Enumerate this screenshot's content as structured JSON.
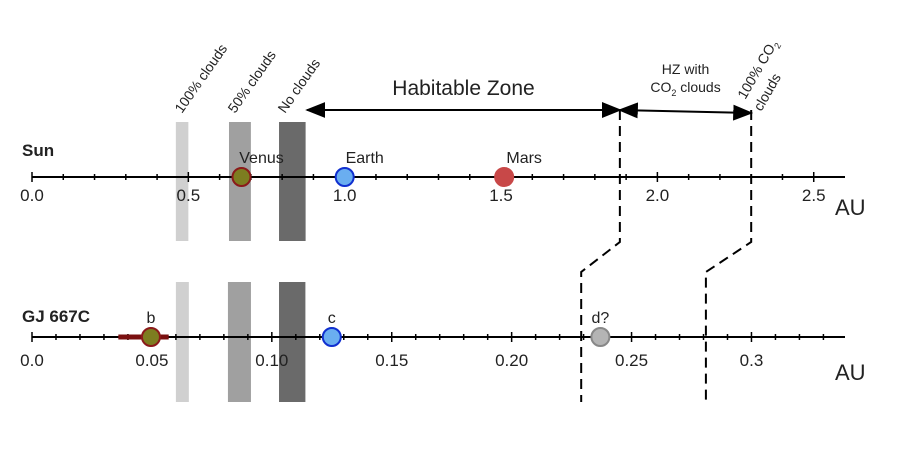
{
  "chart_data": [
    {
      "type": "number_line",
      "title": "Sun",
      "xlabel": "AU",
      "xlim": [
        0,
        2.6
      ],
      "xticks": [
        {
          "value": 0,
          "label": "0.0"
        },
        0.5,
        {
          "value": 1,
          "label": "1.0"
        },
        1.5,
        {
          "value": 2,
          "label": "2.0"
        },
        2.5
      ],
      "minor_xticks": [
        0.1,
        0.2,
        0.3,
        0.4,
        0.6,
        0.7,
        0.8,
        0.9,
        1.1,
        1.2,
        1.3,
        1.4,
        1.6,
        1.7,
        1.8,
        1.9,
        2.1,
        2.2,
        2.3,
        2.4
      ],
      "bands": [
        {
          "label": "100% clouds",
          "x": [
            0.46,
            0.5
          ],
          "color": "#d0d0d0"
        },
        {
          "label": "50% clouds",
          "x": [
            0.63,
            0.7
          ],
          "color": "#a0a0a0"
        },
        {
          "label": "No clouds",
          "x": [
            0.79,
            0.875
          ],
          "color": "#6a6a6a"
        }
      ],
      "points": [
        {
          "name": "Venus",
          "x": 0.67,
          "color": "#7d7d20",
          "edge": "#8b1a1a"
        },
        {
          "name": "Earth",
          "x": 1.0,
          "color": "#6aaef0",
          "edge": "#1030d0"
        },
        {
          "name": "Mars",
          "x": 1.51,
          "color": "#c84848",
          "edge": "#c84848"
        }
      ],
      "habitable_zone": {
        "label": "Habitable Zone",
        "x": [
          0.88,
          1.88
        ]
      },
      "co2_zone": {
        "label": [
          "HZ with",
          "CO",
          "2",
          " clouds"
        ],
        "x": [
          1.88,
          2.3
        ]
      },
      "co2_limit_label": [
        "100% CO",
        "2",
        "clouds"
      ]
    },
    {
      "type": "number_line",
      "title": "GJ 667C",
      "xlabel": "AU",
      "xlim": [
        0,
        0.339
      ],
      "xticks": [
        {
          "value": 0,
          "label": "0.0"
        },
        0.05,
        {
          "value": 0.1,
          "label": "0.10"
        },
        0.15,
        {
          "value": 0.2,
          "label": "0.20"
        },
        0.25,
        0.3
      ],
      "minor_xticks": [
        0.01,
        0.02,
        0.03,
        0.04,
        0.06,
        0.07,
        0.08,
        0.09,
        0.11,
        0.12,
        0.13,
        0.14,
        0.16,
        0.17,
        0.18,
        0.19,
        0.21,
        0.22,
        0.23,
        0.24,
        0.26,
        0.27,
        0.28,
        0.29,
        0.31,
        0.32,
        0.33
      ],
      "bands": [
        {
          "x": [
            0.06,
            0.0654
          ],
          "color": "#d0d0d0"
        },
        {
          "x": [
            0.0817,
            0.0913
          ],
          "color": "#a0a0a0"
        },
        {
          "x": [
            0.103,
            0.114
          ],
          "color": "#6a6a6a"
        }
      ],
      "points": [
        {
          "name": "b",
          "x": 0.0496,
          "err": [
            0.036,
            0.057
          ],
          "color": "#7d7d20",
          "edge": "#8b1a1a"
        },
        {
          "name": "c",
          "x": 0.125,
          "color": "#6aaef0",
          "edge": "#1030d0"
        },
        {
          "name": "d?",
          "x": 0.237,
          "color": "#b4b4b4",
          "edge": "#888888"
        }
      ],
      "zone_bounds": [
        0.229,
        0.281
      ]
    }
  ]
}
